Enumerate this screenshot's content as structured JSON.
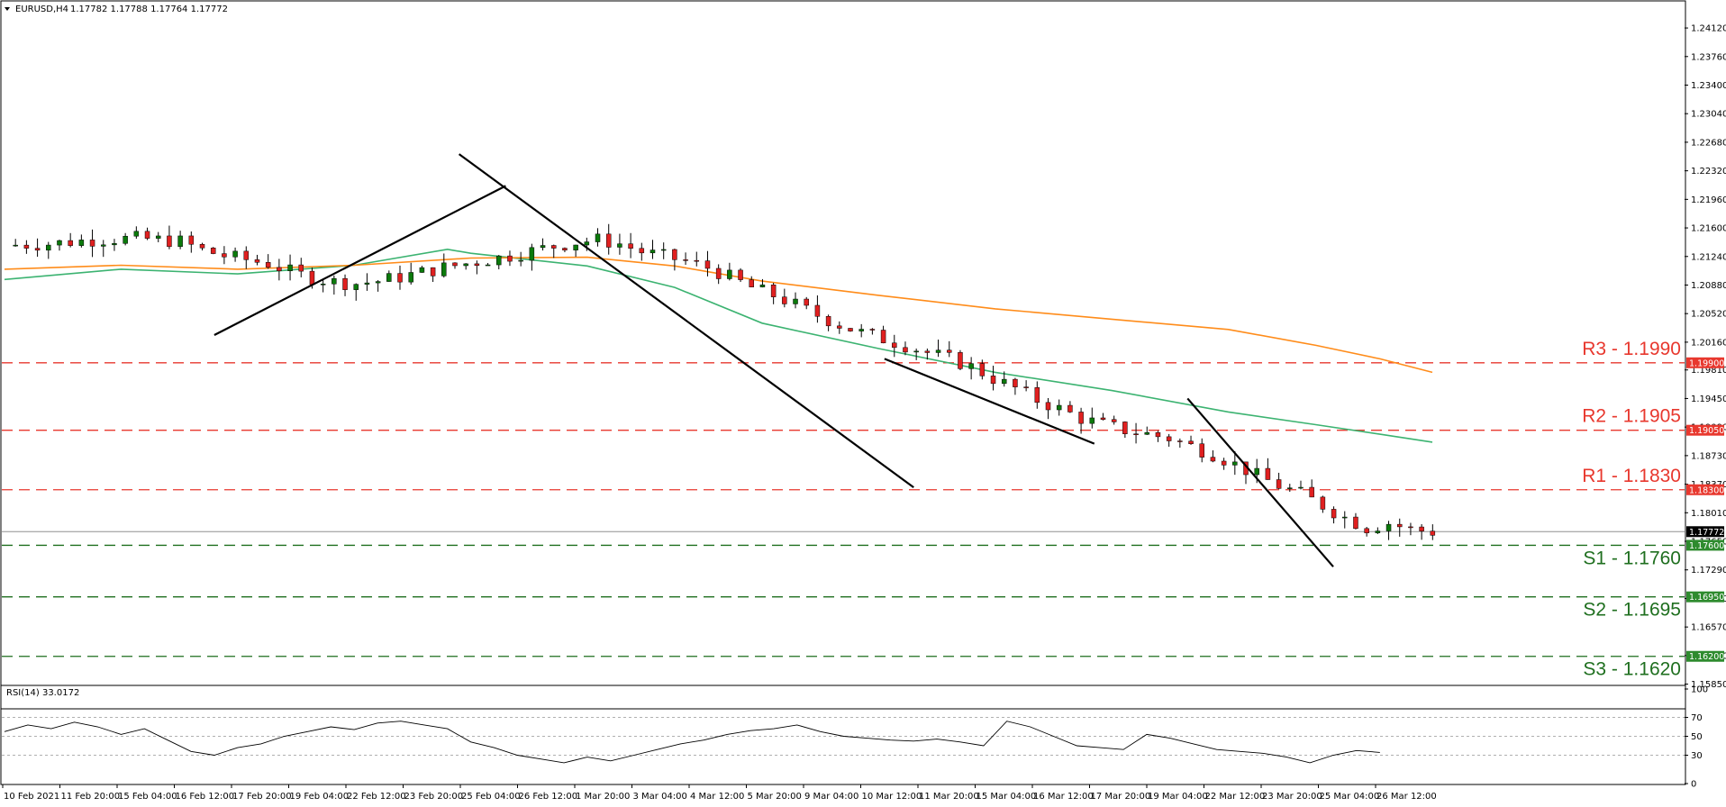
{
  "header": {
    "symbol": "EURUSD,H4",
    "ohlc": "1.17782 1.17788 1.17764 1.17772"
  },
  "rsi_header": "RSI(14) 33.0172",
  "colors": {
    "bull": "#0b7a0b",
    "bear": "#e02020",
    "ma_fast": "#3cb371",
    "ma_slow": "#ff8c1a",
    "resistance": "#e8382e",
    "support": "#1f6f1f",
    "price_line": "#909090"
  },
  "chart_data": [
    {
      "type": "candlestick",
      "title": "EURUSD,H4",
      "ylim": [
        1.1555,
        1.2445
      ],
      "y_ticks": [
        "1.24120",
        "1.23760",
        "1.23400",
        "1.23040",
        "1.22680",
        "1.22320",
        "1.21960",
        "1.21600",
        "1.21240",
        "1.20880",
        "1.20520",
        "1.20160",
        "1.19810",
        "1.19450",
        "1.19090",
        "1.18730",
        "1.18370",
        "1.18010",
        "1.17650",
        "1.17290",
        "1.16930",
        "1.16570",
        "1.16210",
        "1.15850"
      ],
      "x_labels": [
        "10 Feb 2021",
        "11 Feb 20:00",
        "15 Feb 04:00",
        "16 Feb 12:00",
        "17 Feb 20:00",
        "19 Feb 04:00",
        "22 Feb 12:00",
        "23 Feb 20:00",
        "25 Feb 04:00",
        "26 Feb 12:00",
        "1 Mar 20:00",
        "3 Mar 04:00",
        "4 Mar 12:00",
        "5 Mar 20:00",
        "9 Mar 04:00",
        "10 Mar 12:00",
        "11 Mar 20:00",
        "15 Mar 04:00",
        "16 Mar 12:00",
        "17 Mar 20:00",
        "19 Mar 04:00",
        "22 Mar 12:00",
        "23 Mar 20:00",
        "25 Mar 04:00",
        "26 Mar 12:00"
      ],
      "current_price": {
        "value": 1.17772,
        "label": "1.17772"
      },
      "levels": [
        {
          "name": "R3 - 1.1990",
          "value": 1.199,
          "tag": "1.19900",
          "kind": "resistance"
        },
        {
          "name": "R2 - 1.1905",
          "value": 1.1905,
          "tag": "1.19050",
          "kind": "resistance"
        },
        {
          "name": "R1 - 1.1830",
          "value": 1.183,
          "tag": "1.18300",
          "kind": "resistance"
        },
        {
          "name": "S1 - 1.1760",
          "value": 1.176,
          "tag": "1.17600",
          "kind": "support"
        },
        {
          "name": "S2 - 1.1695",
          "value": 1.1695,
          "tag": "1.16950",
          "kind": "support"
        },
        {
          "name": "S3 - 1.1620",
          "value": 1.162,
          "tag": "1.16200",
          "kind": "support"
        }
      ],
      "series": [
        {
          "values": [
            [
              0,
              1.2138
            ],
            [
              4,
              1.214
            ],
            [
              8,
              1.2145
            ],
            [
              12,
              1.2147
            ],
            [
              16,
              1.2143
            ],
            [
              18,
              1.2132
            ],
            [
              20,
              1.2125
            ],
            [
              24,
              1.2115
            ],
            [
              26,
              1.2105
            ],
            [
              28,
              1.2097
            ],
            [
              30,
              1.2092
            ],
            [
              32,
              1.209
            ],
            [
              34,
              1.2093
            ],
            [
              36,
              1.2098
            ],
            [
              38,
              1.2104
            ],
            [
              40,
              1.211
            ],
            [
              42,
              1.2115
            ],
            [
              44,
              1.212
            ],
            [
              46,
              1.2125
            ],
            [
              48,
              1.2131
            ],
            [
              50,
              1.2137
            ],
            [
              52,
              1.2142
            ],
            [
              54,
              1.2145
            ],
            [
              56,
              1.214
            ],
            [
              58,
              1.213
            ],
            [
              60,
              1.2124
            ],
            [
              62,
              1.2118
            ],
            [
              64,
              1.211
            ],
            [
              66,
              1.2098
            ],
            [
              68,
              1.2085
            ],
            [
              70,
              1.2075
            ],
            [
              72,
              1.2063
            ],
            [
              74,
              1.205
            ],
            [
              76,
              1.2038
            ],
            [
              78,
              1.2028
            ],
            [
              80,
              1.202
            ],
            [
              82,
              1.2012
            ],
            [
              84,
              1.2003
            ],
            [
              86,
              1.1995
            ],
            [
              88,
              1.1985
            ],
            [
              90,
              1.197
            ],
            [
              92,
              1.1958
            ],
            [
              94,
              1.1943
            ],
            [
              96,
              1.1932
            ],
            [
              98,
              1.192
            ],
            [
              100,
              1.1912
            ],
            [
              102,
              1.1905
            ],
            [
              104,
              1.19
            ],
            [
              106,
              1.1895
            ],
            [
              108,
              1.1885
            ],
            [
              110,
              1.1875
            ],
            [
              112,
              1.1862
            ],
            [
              114,
              1.1848
            ],
            [
              116,
              1.1835
            ],
            [
              118,
              1.1825
            ],
            [
              120,
              1.181
            ],
            [
              122,
              1.1795
            ],
            [
              124,
              1.1782
            ],
            [
              126,
              1.1788
            ],
            [
              128,
              1.178
            ],
            [
              130,
              1.1777
            ]
          ]
        },
        {
          "values": [
            [
              0,
              1.2095
            ],
            [
              20,
              1.2108
            ],
            [
              40,
              1.2102
            ],
            [
              60,
              1.2113
            ],
            [
              76,
              1.2133
            ],
            [
              80,
              1.2128
            ],
            [
              100,
              1.2112
            ],
            [
              115,
              1.2085
            ],
            [
              130,
              1.204
            ],
            [
              150,
              1.2008
            ],
            [
              170,
              1.1978
            ],
            [
              190,
              1.1955
            ],
            [
              210,
              1.1928
            ],
            [
              225,
              1.1912
            ],
            [
              236,
              1.19
            ],
            [
              245,
              1.189
            ]
          ]
        },
        {
          "values": [
            [
              0,
              1.2108
            ],
            [
              20,
              1.2113
            ],
            [
              40,
              1.2108
            ],
            [
              60,
              1.2113
            ],
            [
              80,
              1.2122
            ],
            [
              100,
              1.2123
            ],
            [
              115,
              1.2112
            ],
            [
              130,
              1.2093
            ],
            [
              150,
              1.2075
            ],
            [
              170,
              1.2058
            ],
            [
              190,
              1.2045
            ],
            [
              210,
              1.2032
            ],
            [
              225,
              1.2012
            ],
            [
              236,
              1.1995
            ],
            [
              245,
              1.1978
            ]
          ]
        }
      ],
      "trendlines": [
        {
          "from": [
            36,
            1.2025
          ],
          "to": [
            86,
            1.2213
          ]
        },
        {
          "from": [
            78,
            1.2253
          ],
          "to": [
            156,
            1.1833
          ]
        },
        {
          "from": [
            151,
            1.1995
          ],
          "to": [
            187,
            1.1888
          ]
        },
        {
          "from": [
            203,
            1.1945
          ],
          "to": [
            228,
            1.1733
          ]
        }
      ]
    },
    {
      "type": "line",
      "title": "RSI(14) 33.0172",
      "ylim": [
        0,
        100
      ],
      "y_ticks": [
        100,
        70,
        50,
        30,
        0
      ],
      "y_tick_labels": [
        "100",
        "70",
        "50",
        "30",
        "0"
      ],
      "x": [
        0,
        4,
        8,
        12,
        16,
        20,
        24,
        28,
        32,
        36,
        40,
        44,
        48,
        52,
        56,
        60,
        64,
        68,
        72,
        76,
        80,
        84,
        88,
        92,
        96,
        100,
        104,
        108,
        112,
        116,
        120,
        124,
        128,
        132,
        136,
        140,
        144,
        148,
        152,
        156,
        160,
        164,
        168,
        172,
        176,
        180,
        184,
        188,
        192,
        196,
        200,
        204,
        208,
        212,
        216,
        220,
        224,
        228,
        232,
        236
      ],
      "values": [
        55,
        62,
        58,
        65,
        60,
        52,
        58,
        46,
        34,
        30,
        38,
        42,
        50,
        55,
        60,
        57,
        64,
        66,
        62,
        58,
        44,
        38,
        30,
        26,
        22,
        28,
        24,
        30,
        36,
        42,
        46,
        52,
        56,
        58,
        62,
        55,
        50,
        48,
        46,
        45,
        47,
        44,
        40,
        66,
        60,
        50,
        40,
        38,
        36,
        52,
        48,
        42,
        36,
        34,
        32,
        28,
        22,
        30,
        35,
        33
      ]
    }
  ]
}
